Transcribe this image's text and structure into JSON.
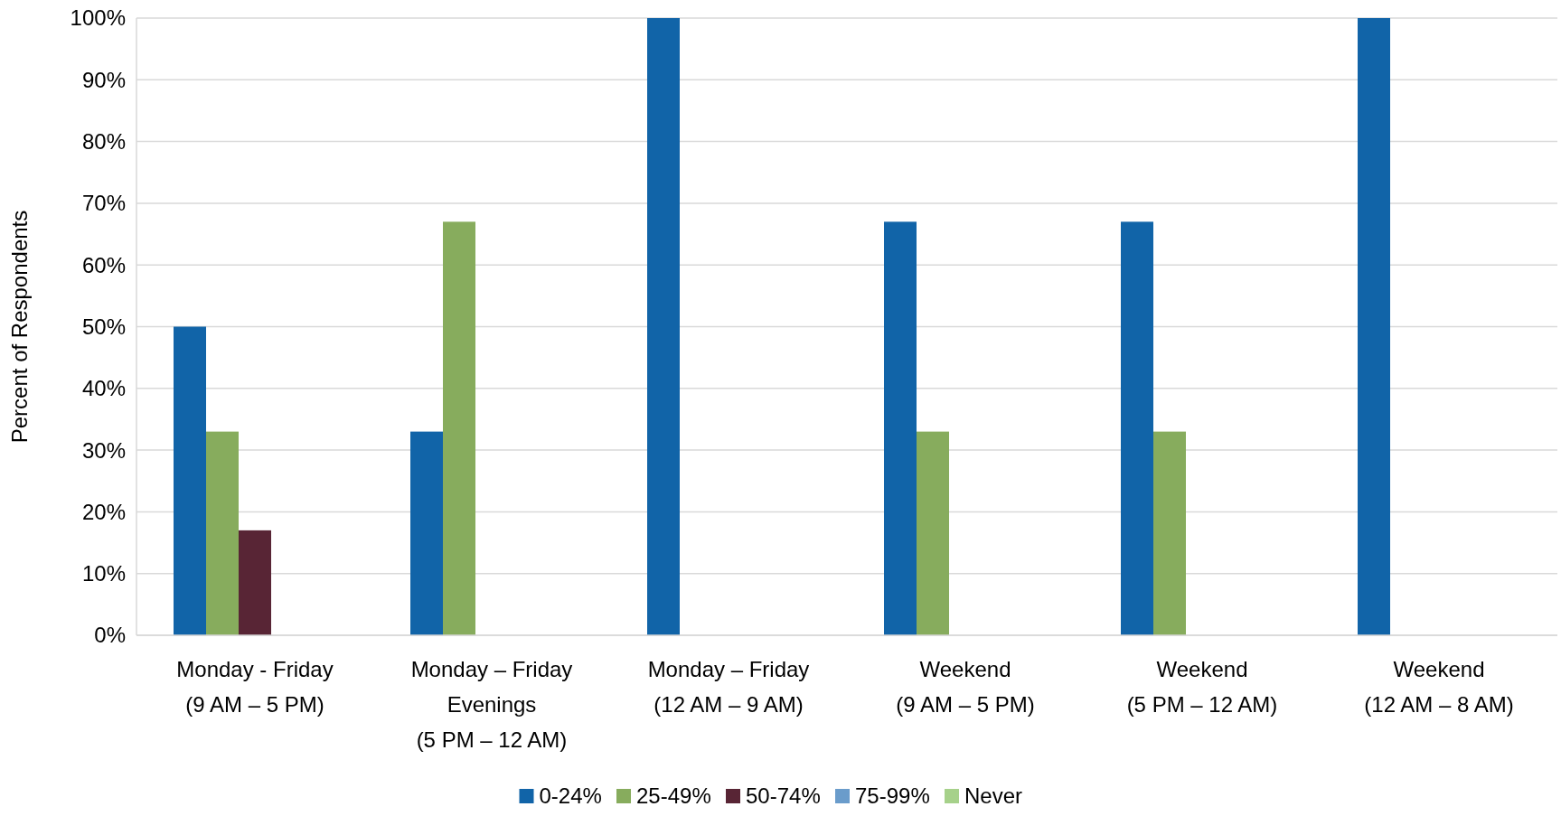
{
  "chart_data": {
    "type": "bar",
    "ylabel": "Percent of Respondents",
    "categories": [
      "Monday - Friday\n(9 AM – 5 PM)",
      "Monday – Friday\nEvenings\n(5 PM – 12 AM)",
      "Monday – Friday\n(12 AM – 9 AM)",
      "Weekend\n(9 AM – 5 PM)",
      "Weekend\n(5 PM – 12 AM)",
      "Weekend\n(12 AM – 8 AM)"
    ],
    "series": [
      {
        "name": "0-24%",
        "color": "#1164a8",
        "values": [
          50,
          33,
          100,
          67,
          67,
          100
        ]
      },
      {
        "name": "25-49%",
        "color": "#87ac5d",
        "values": [
          33,
          67,
          0,
          33,
          33,
          0
        ]
      },
      {
        "name": "50-74%",
        "color": "#582535",
        "values": [
          17,
          0,
          0,
          0,
          0,
          0
        ]
      },
      {
        "name": "75-99%",
        "color": "#6a9ccb",
        "values": [
          0,
          0,
          0,
          0,
          0,
          0
        ]
      },
      {
        "name": "Never",
        "color": "#a6d18a",
        "values": [
          0,
          0,
          0,
          0,
          0,
          0
        ]
      }
    ],
    "ylim": [
      0,
      100
    ],
    "yticks": [
      {
        "value": 0,
        "label": "0%"
      },
      {
        "value": 10,
        "label": "10%"
      },
      {
        "value": 20,
        "label": "20%"
      },
      {
        "value": 30,
        "label": "30%"
      },
      {
        "value": 40,
        "label": "40%"
      },
      {
        "value": 50,
        "label": "50%"
      },
      {
        "value": 60,
        "label": "60%"
      },
      {
        "value": 70,
        "label": "70%"
      },
      {
        "value": 80,
        "label": "80%"
      },
      {
        "value": 90,
        "label": "90%"
      },
      {
        "value": 100,
        "label": "100%"
      }
    ],
    "grid": "y",
    "legend": "bottom"
  }
}
